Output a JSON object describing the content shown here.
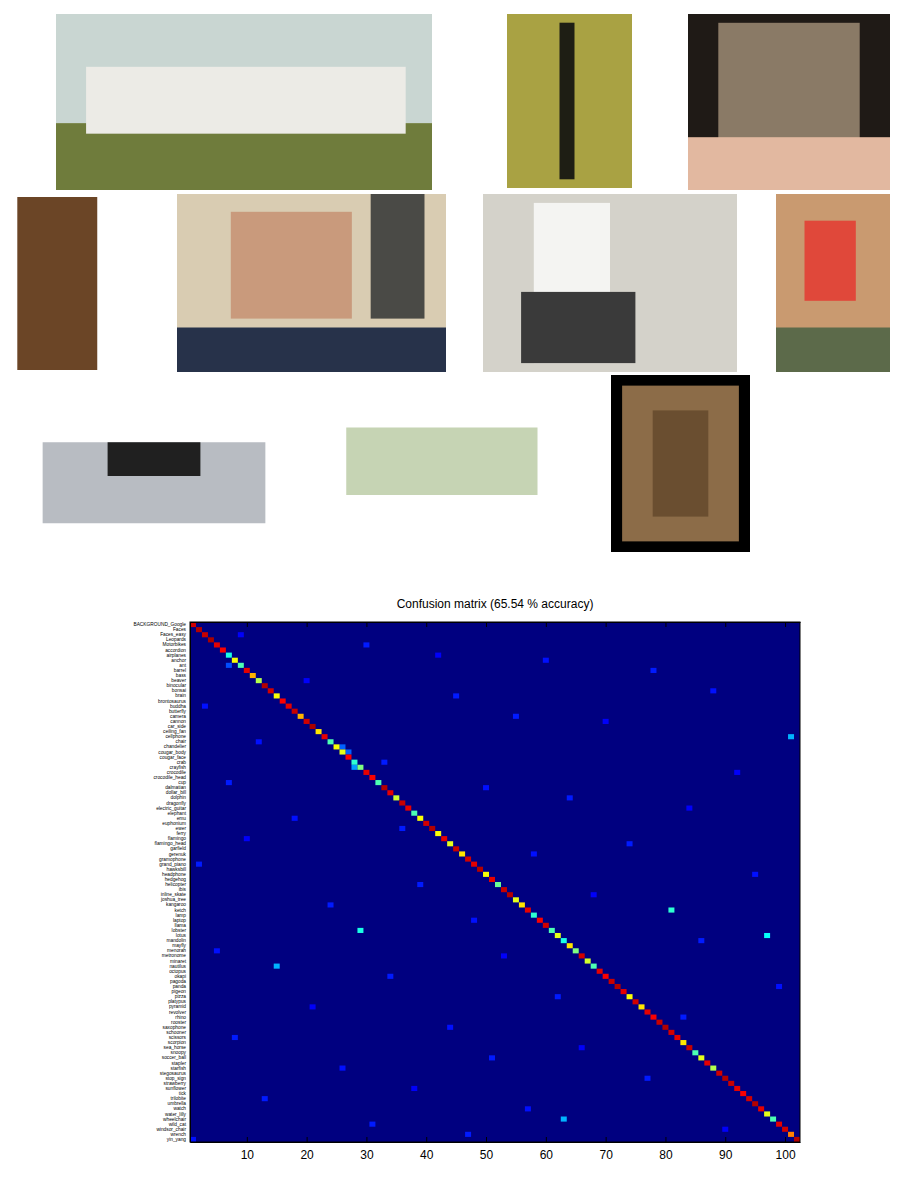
{
  "chart_data": {
    "type": "heatmap",
    "title": "Confusion matrix (65.54 % accuracy)",
    "categories": [
      "BACKGROUND_Google",
      "Faces",
      "Faces_easy",
      "Leopards",
      "Motorbikes",
      "accordion",
      "airplanes",
      "anchor",
      "ant",
      "barrel",
      "bass",
      "beaver",
      "binocular",
      "bonsai",
      "brain",
      "brontosaurus",
      "buddha",
      "butterfly",
      "camera",
      "cannon",
      "car_side",
      "ceiling_fan",
      "cellphone",
      "chair",
      "chandelier",
      "cougar_body",
      "cougar_face",
      "crab",
      "crayfish",
      "crocodile",
      "crocodile_head",
      "cup",
      "dalmatian",
      "dollar_bill",
      "dolphin",
      "dragonfly",
      "electric_guitar",
      "elephant",
      "emu",
      "euphonium",
      "ewer",
      "ferry",
      "flamingo",
      "flamingo_head",
      "garfield",
      "gerenuk",
      "gramophone",
      "grand_piano",
      "hawksbill",
      "headphone",
      "hedgehog",
      "helicopter",
      "ibis",
      "inline_skate",
      "joshua_tree",
      "kangaroo",
      "ketch",
      "lamp",
      "laptop",
      "llama",
      "lobster",
      "lotus",
      "mandolin",
      "mayfly",
      "menorah",
      "metronome",
      "minaret",
      "nautilus",
      "octopus",
      "okapi",
      "pagoda",
      "panda",
      "pigeon",
      "pizza",
      "platypus",
      "pyramid",
      "revolver",
      "rhino",
      "rooster",
      "saxophone",
      "schooner",
      "scissors",
      "scorpion",
      "sea_horse",
      "snoopy",
      "soccer_ball",
      "stapler",
      "starfish",
      "stegosaurus",
      "stop_sign",
      "strawberry",
      "sunflower",
      "tick",
      "trilobite",
      "umbrella",
      "watch",
      "water_lilly",
      "wheelchair",
      "wild_cat",
      "windsor_chair",
      "wrench",
      "yin_yang"
    ],
    "xlim": [
      0.5,
      102.5
    ],
    "xticks": [
      10,
      20,
      30,
      40,
      50,
      60,
      70,
      80,
      90,
      100
    ],
    "clim": [
      0,
      1
    ],
    "diagonal": [
      0.92,
      0.95,
      0.93,
      0.96,
      0.9,
      0.88,
      0.4,
      0.62,
      0.45,
      0.9,
      0.7,
      0.55,
      0.95,
      0.92,
      0.62,
      0.88,
      0.9,
      0.93,
      0.7,
      0.92,
      0.96,
      0.65,
      0.9,
      0.45,
      0.62,
      0.6,
      0.88,
      0.42,
      0.5,
      0.9,
      0.88,
      0.45,
      0.95,
      0.9,
      0.58,
      0.93,
      0.9,
      0.45,
      0.62,
      0.92,
      0.95,
      0.62,
      0.9,
      0.6,
      0.93,
      0.65,
      0.92,
      0.9,
      0.95,
      0.62,
      0.9,
      0.48,
      0.93,
      0.95,
      0.6,
      0.65,
      0.9,
      0.42,
      0.88,
      0.92,
      0.45,
      0.6,
      0.4,
      0.65,
      0.5,
      0.92,
      0.58,
      0.45,
      0.9,
      0.88,
      0.93,
      0.95,
      0.9,
      0.62,
      0.92,
      0.65,
      0.9,
      0.88,
      0.93,
      0.95,
      0.92,
      0.9,
      0.65,
      0.93,
      0.45,
      0.6,
      0.9,
      0.55,
      0.92,
      0.95,
      0.93,
      0.9,
      0.88,
      0.92,
      0.95,
      0.9,
      0.6,
      0.45,
      0.9,
      0.92,
      0.75,
      0.95
    ],
    "cells": [
      [
        23,
        101,
        0.3
      ],
      [
        57,
        81,
        0.42
      ],
      [
        61,
        29,
        0.4
      ],
      [
        62,
        97,
        0.38
      ],
      [
        68,
        15,
        0.3
      ],
      [
        98,
        63,
        0.3
      ],
      [
        3,
        9,
        0.12
      ],
      [
        5,
        30,
        0.15
      ],
      [
        7,
        42,
        0.12
      ],
      [
        8,
        60,
        0.14
      ],
      [
        10,
        78,
        0.15
      ],
      [
        12,
        20,
        0.12
      ],
      [
        14,
        88,
        0.14
      ],
      [
        15,
        45,
        0.15
      ],
      [
        17,
        3,
        0.14
      ],
      [
        19,
        55,
        0.15
      ],
      [
        20,
        70,
        0.12
      ],
      [
        24,
        12,
        0.14
      ],
      [
        26,
        27,
        0.22
      ],
      [
        28,
        33,
        0.15
      ],
      [
        30,
        92,
        0.12
      ],
      [
        32,
        7,
        0.15
      ],
      [
        33,
        50,
        0.14
      ],
      [
        35,
        64,
        0.15
      ],
      [
        37,
        84,
        0.12
      ],
      [
        39,
        18,
        0.14
      ],
      [
        41,
        36,
        0.15
      ],
      [
        43,
        10,
        0.12
      ],
      [
        44,
        74,
        0.15
      ],
      [
        46,
        58,
        0.14
      ],
      [
        48,
        2,
        0.15
      ],
      [
        50,
        95,
        0.14
      ],
      [
        52,
        39,
        0.15
      ],
      [
        54,
        68,
        0.12
      ],
      [
        56,
        24,
        0.15
      ],
      [
        59,
        48,
        0.14
      ],
      [
        63,
        86,
        0.15
      ],
      [
        65,
        5,
        0.14
      ],
      [
        66,
        53,
        0.12
      ],
      [
        70,
        34,
        0.15
      ],
      [
        72,
        99,
        0.14
      ],
      [
        74,
        62,
        0.15
      ],
      [
        76,
        21,
        0.12
      ],
      [
        78,
        83,
        0.15
      ],
      [
        80,
        44,
        0.14
      ],
      [
        82,
        8,
        0.15
      ],
      [
        84,
        66,
        0.12
      ],
      [
        86,
        51,
        0.15
      ],
      [
        88,
        26,
        0.14
      ],
      [
        90,
        77,
        0.15
      ],
      [
        92,
        38,
        0.12
      ],
      [
        94,
        13,
        0.15
      ],
      [
        96,
        57,
        0.14
      ],
      [
        99,
        31,
        0.15
      ],
      [
        100,
        90,
        0.12
      ],
      [
        101,
        47,
        0.15
      ],
      [
        102,
        1,
        0.14
      ],
      [
        29,
        28,
        0.28
      ],
      [
        9,
        7,
        0.2
      ],
      [
        25,
        26,
        0.22
      ]
    ]
  }
}
